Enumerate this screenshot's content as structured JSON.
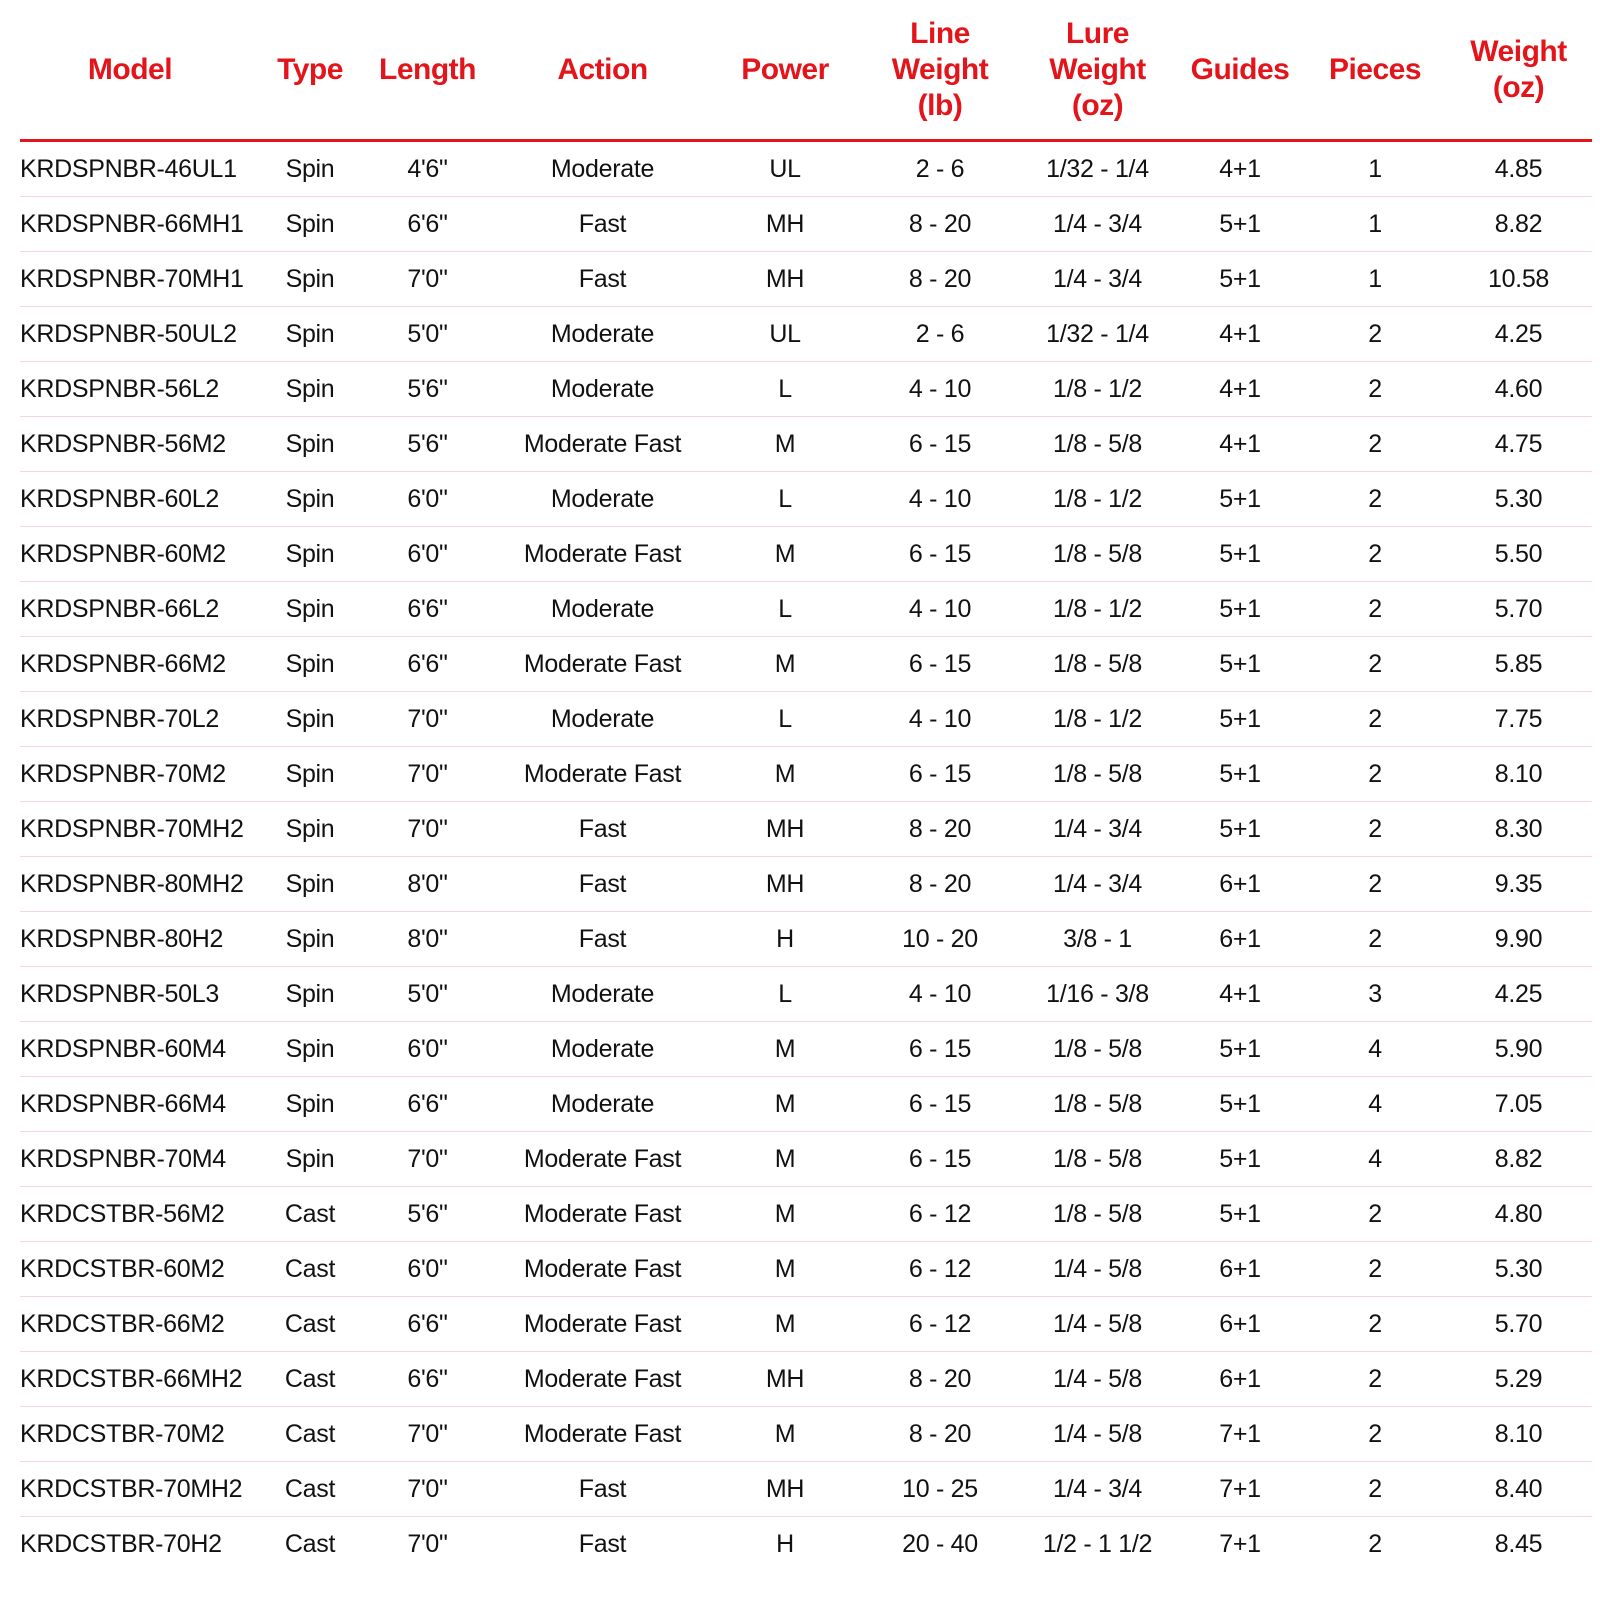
{
  "colors": {
    "header": "#e3151b",
    "row_divider": "#f6d6da"
  },
  "headers": [
    "Model",
    "Type",
    "Length",
    "Action",
    "Power",
    "Line Weight (lb)",
    "Lure Weight (oz)",
    "Guides",
    "Pieces",
    "Weight (oz)"
  ],
  "header_lines": [
    [
      "Model"
    ],
    [
      "Type"
    ],
    [
      "Length"
    ],
    [
      "Action"
    ],
    [
      "Power"
    ],
    [
      "Line",
      "Weight",
      "(lb)"
    ],
    [
      "Lure",
      "Weight",
      "(oz)"
    ],
    [
      "Guides"
    ],
    [
      "Pieces"
    ],
    [
      "Weight",
      "(oz)"
    ]
  ],
  "rows": [
    [
      "KRDSPNBR-46UL1",
      "Spin",
      "4'6\"",
      "Moderate",
      "UL",
      "2 - 6",
      "1/32 - 1/4",
      "4+1",
      "1",
      "4.85"
    ],
    [
      "KRDSPNBR-66MH1",
      "Spin",
      "6'6\"",
      "Fast",
      "MH",
      "8 - 20",
      "1/4 - 3/4",
      "5+1",
      "1",
      "8.82"
    ],
    [
      "KRDSPNBR-70MH1",
      "Spin",
      "7'0\"",
      "Fast",
      "MH",
      "8 - 20",
      "1/4 - 3/4",
      "5+1",
      "1",
      "10.58"
    ],
    [
      "KRDSPNBR-50UL2",
      "Spin",
      "5'0\"",
      "Moderate",
      "UL",
      "2 - 6",
      "1/32 - 1/4",
      "4+1",
      "2",
      "4.25"
    ],
    [
      "KRDSPNBR-56L2",
      "Spin",
      "5'6\"",
      "Moderate",
      "L",
      "4 - 10",
      "1/8 - 1/2",
      "4+1",
      "2",
      "4.60"
    ],
    [
      "KRDSPNBR-56M2",
      "Spin",
      "5'6\"",
      "Moderate Fast",
      "M",
      "6 - 15",
      "1/8 - 5/8",
      "4+1",
      "2",
      "4.75"
    ],
    [
      "KRDSPNBR-60L2",
      "Spin",
      "6'0\"",
      "Moderate",
      "L",
      "4 - 10",
      "1/8 - 1/2",
      "5+1",
      "2",
      "5.30"
    ],
    [
      "KRDSPNBR-60M2",
      "Spin",
      "6'0\"",
      "Moderate Fast",
      "M",
      "6 - 15",
      "1/8 - 5/8",
      "5+1",
      "2",
      "5.50"
    ],
    [
      "KRDSPNBR-66L2",
      "Spin",
      "6'6\"",
      "Moderate",
      "L",
      "4 - 10",
      "1/8 - 1/2",
      "5+1",
      "2",
      "5.70"
    ],
    [
      "KRDSPNBR-66M2",
      "Spin",
      "6'6\"",
      "Moderate Fast",
      "M",
      "6 - 15",
      "1/8 - 5/8",
      "5+1",
      "2",
      "5.85"
    ],
    [
      "KRDSPNBR-70L2",
      "Spin",
      "7'0\"",
      "Moderate",
      "L",
      "4 - 10",
      "1/8 - 1/2",
      "5+1",
      "2",
      "7.75"
    ],
    [
      "KRDSPNBR-70M2",
      "Spin",
      "7'0\"",
      "Moderate Fast",
      "M",
      "6 - 15",
      "1/8 - 5/8",
      "5+1",
      "2",
      "8.10"
    ],
    [
      "KRDSPNBR-70MH2",
      "Spin",
      "7'0\"",
      "Fast",
      "MH",
      "8 - 20",
      "1/4 - 3/4",
      "5+1",
      "2",
      "8.30"
    ],
    [
      "KRDSPNBR-80MH2",
      "Spin",
      "8'0\"",
      "Fast",
      "MH",
      "8 - 20",
      "1/4 - 3/4",
      "6+1",
      "2",
      "9.35"
    ],
    [
      "KRDSPNBR-80H2",
      "Spin",
      "8'0\"",
      "Fast",
      "H",
      "10 - 20",
      "3/8 - 1",
      "6+1",
      "2",
      "9.90"
    ],
    [
      "KRDSPNBR-50L3",
      "Spin",
      "5'0\"",
      "Moderate",
      "L",
      "4 - 10",
      "1/16 - 3/8",
      "4+1",
      "3",
      "4.25"
    ],
    [
      "KRDSPNBR-60M4",
      "Spin",
      "6'0\"",
      "Moderate",
      "M",
      "6 - 15",
      "1/8 - 5/8",
      "5+1",
      "4",
      "5.90"
    ],
    [
      "KRDSPNBR-66M4",
      "Spin",
      "6'6\"",
      "Moderate",
      "M",
      "6 - 15",
      "1/8 - 5/8",
      "5+1",
      "4",
      "7.05"
    ],
    [
      "KRDSPNBR-70M4",
      "Spin",
      "7'0\"",
      "Moderate Fast",
      "M",
      "6 - 15",
      "1/8 - 5/8",
      "5+1",
      "4",
      "8.82"
    ],
    [
      "KRDCSTBR-56M2",
      "Cast",
      "5'6\"",
      "Moderate Fast",
      "M",
      "6 - 12",
      "1/8 - 5/8",
      "5+1",
      "2",
      "4.80"
    ],
    [
      "KRDCSTBR-60M2",
      "Cast",
      "6'0\"",
      "Moderate Fast",
      "M",
      "6 - 12",
      "1/4 - 5/8",
      "6+1",
      "2",
      "5.30"
    ],
    [
      "KRDCSTBR-66M2",
      "Cast",
      "6'6\"",
      "Moderate Fast",
      "M",
      "6 - 12",
      "1/4 - 5/8",
      "6+1",
      "2",
      "5.70"
    ],
    [
      "KRDCSTBR-66MH2",
      "Cast",
      "6'6\"",
      "Moderate Fast",
      "MH",
      "8 - 20",
      "1/4 - 5/8",
      "6+1",
      "2",
      "5.29"
    ],
    [
      "KRDCSTBR-70M2",
      "Cast",
      "7'0\"",
      "Moderate Fast",
      "M",
      "8 - 20",
      "1/4 - 5/8",
      "7+1",
      "2",
      "8.10"
    ],
    [
      "KRDCSTBR-70MH2",
      "Cast",
      "7'0\"",
      "Fast",
      "MH",
      "10 - 25",
      "1/4 - 3/4",
      "7+1",
      "2",
      "8.40"
    ],
    [
      "KRDCSTBR-70H2",
      "Cast",
      "7'0\"",
      "Fast",
      "H",
      "20 - 40",
      "1/2 - 1 1/2",
      "7+1",
      "2",
      "8.45"
    ]
  ]
}
